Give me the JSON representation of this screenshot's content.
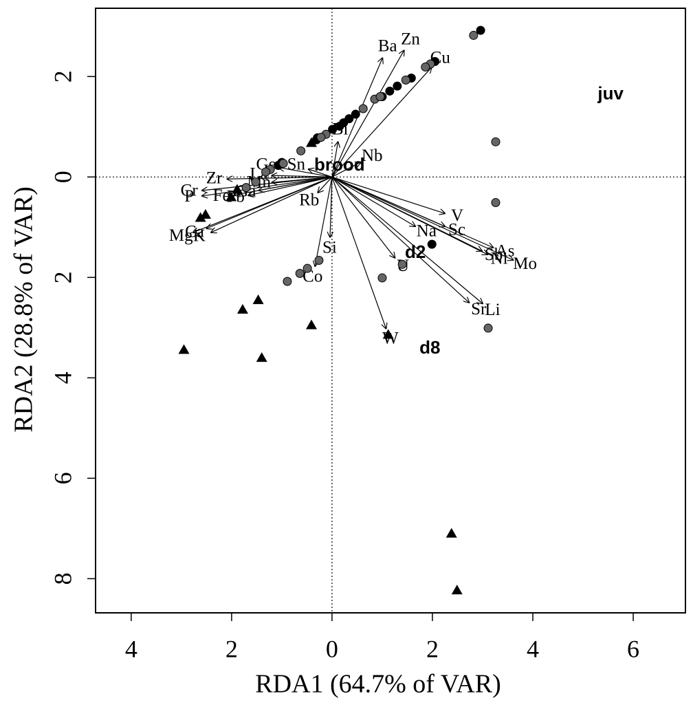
{
  "chart_data": {
    "type": "biplot",
    "xlabel": "RDA1 (64.7% of VAR)",
    "ylabel": "RDA2 (28.8% of VAR)",
    "xlim": [
      -4.71,
      7.04
    ],
    "ylim": [
      -8.68,
      3.36
    ],
    "xticks": [
      {
        "value": -4,
        "label": "4"
      },
      {
        "value": -2,
        "label": "2"
      },
      0,
      2,
      4,
      6
    ],
    "yticks": [
      {
        "value": -8,
        "label": "8"
      },
      {
        "value": -6,
        "label": "6"
      },
      {
        "value": -4,
        "label": "4"
      },
      {
        "value": -2,
        "label": "2"
      },
      0,
      2
    ],
    "zero_lines": true,
    "series": [
      {
        "marker": "circle",
        "color": "#000000",
        "x": [
          2.96,
          2.05,
          1.58,
          1.3,
          1.15,
          1.0,
          0.47,
          0.34,
          0.23,
          0.15,
          0.01,
          -0.29,
          1.99,
          -0.31,
          -1.0,
          -1.07
        ],
        "y": [
          2.92,
          2.3,
          1.97,
          1.81,
          1.71,
          1.6,
          1.25,
          1.16,
          1.08,
          1.01,
          0.95,
          0.78,
          -1.34,
          0.74,
          0.29,
          0.23
        ]
      },
      {
        "marker": "circle",
        "color": "#666666",
        "x": [
          2.82,
          1.96,
          1.86,
          1.47,
          0.85,
          0.96,
          0.62,
          -0.12,
          -0.22,
          -0.62,
          -0.97,
          -1.23,
          -1.32,
          -1.52,
          -1.71,
          3.26,
          3.26,
          1.4,
          1.0,
          -0.26,
          -0.49,
          -0.64,
          -0.89,
          3.11
        ],
        "y": [
          2.82,
          2.25,
          2.19,
          1.93,
          1.55,
          1.6,
          1.36,
          0.85,
          0.79,
          0.52,
          0.27,
          0.15,
          0.1,
          -0.1,
          -0.21,
          0.7,
          -0.51,
          -1.74,
          -2.01,
          -1.66,
          -1.82,
          -1.92,
          -2.08,
          -3.01
        ]
      },
      {
        "marker": "triangle",
        "color": "#000000",
        "x": [
          -0.41,
          -2.01,
          -1.89,
          -2.52,
          -2.62,
          -1.47,
          -1.78,
          -0.41,
          1.12,
          -2.95,
          -1.4,
          2.38,
          2.49
        ],
        "y": [
          0.68,
          -0.4,
          -0.25,
          -0.75,
          -0.81,
          -2.45,
          -2.64,
          -2.95,
          -3.14,
          -3.44,
          -3.6,
          -7.1,
          -8.23
        ]
      }
    ],
    "arrows": {
      "labels": [
        "Ba",
        "Zn",
        "Cu",
        "Bi",
        "Nb",
        "Sn",
        "Ge",
        "La",
        "Zr",
        "Cr",
        "P",
        "Mg",
        "Ca",
        "K",
        "Fe",
        "Pb",
        "Ga",
        "Mn",
        "Rb",
        "Si",
        "Co",
        "V",
        "Sc",
        "Na",
        "As",
        "Ni",
        "Sb",
        "Mo",
        "U",
        "Li",
        "Sr",
        "W"
      ],
      "x": [
        1.01,
        1.44,
        1.99,
        0.12,
        0.58,
        -0.48,
        -1.07,
        -1.21,
        -2.1,
        -2.6,
        -2.6,
        -2.78,
        -2.51,
        -2.42,
        -1.96,
        -1.68,
        -1.47,
        -1.21,
        -0.29,
        -0.04,
        -0.34,
        2.26,
        2.26,
        1.67,
        3.22,
        3.11,
        3.0,
        3.62,
        1.26,
        3.01,
        2.74,
        1.08
      ],
      "y": [
        2.38,
        2.53,
        2.19,
        0.71,
        0.3,
        0.16,
        0.19,
        0.03,
        -0.04,
        -0.27,
        -0.38,
        -1.11,
        -1.03,
        -1.11,
        -0.36,
        -0.37,
        -0.27,
        -0.11,
        -0.32,
        -1.21,
        -1.79,
        -0.73,
        -0.99,
        -0.99,
        -1.41,
        -1.55,
        -1.48,
        -1.66,
        -1.62,
        -2.53,
        -2.51,
        -3.03
      ]
    },
    "centroids": {
      "labels": [
        "juv",
        "brood",
        "d2",
        "d8"
      ],
      "x": [
        5.55,
        0.15,
        1.66,
        1.95
      ],
      "y": [
        1.64,
        0.22,
        -1.52,
        -3.42
      ]
    }
  }
}
